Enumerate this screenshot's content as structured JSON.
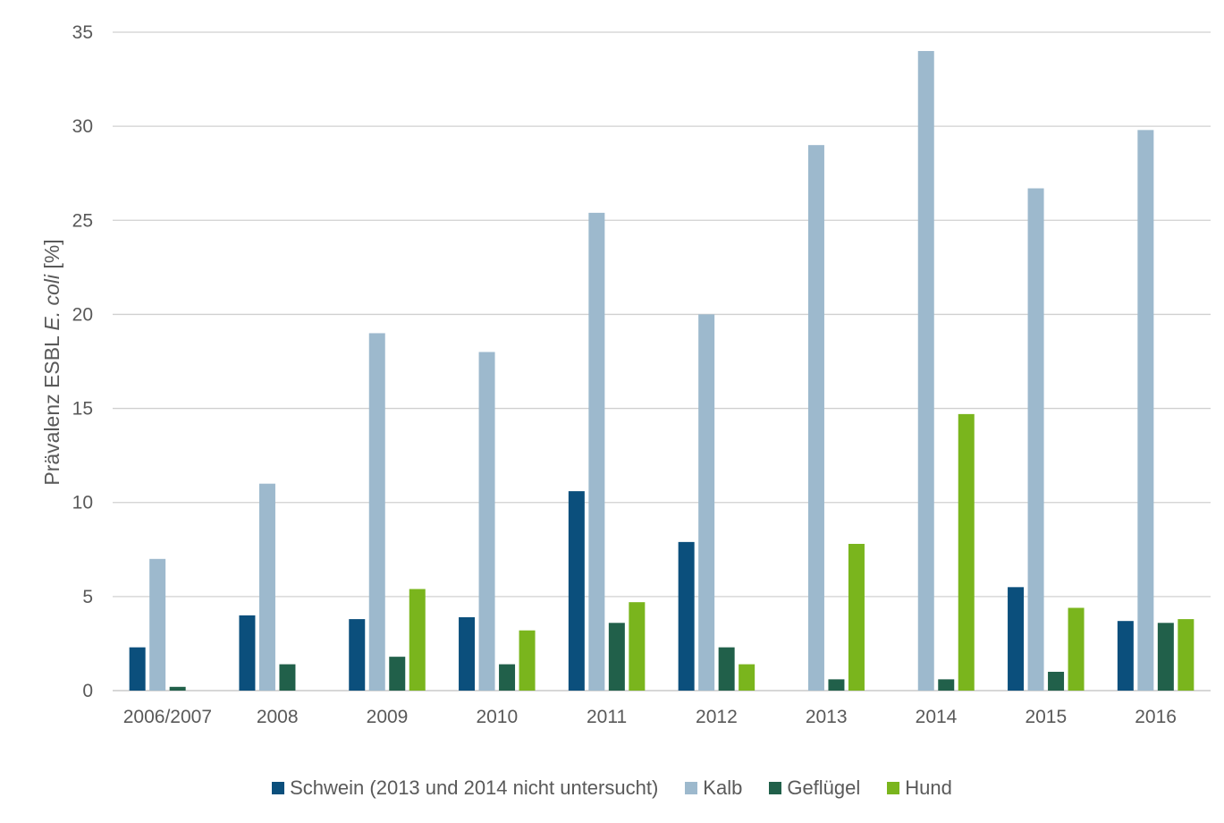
{
  "chart_data": {
    "type": "bar",
    "categories": [
      "2006/2007",
      "2008",
      "2009",
      "2010",
      "2011",
      "2012",
      "2013",
      "2014",
      "2015",
      "2016"
    ],
    "series": [
      {
        "name": "Schwein (2013 und 2014 nicht untersucht)",
        "color": "#0b4f7c",
        "values": [
          2.3,
          4.0,
          3.8,
          3.9,
          10.6,
          7.9,
          null,
          null,
          5.5,
          3.7
        ]
      },
      {
        "name": "Kalb",
        "color": "#9db9cd",
        "values": [
          7.0,
          11.0,
          19.0,
          18.0,
          25.4,
          20.0,
          29.0,
          34.0,
          26.7,
          29.8
        ]
      },
      {
        "name": "Geflügel",
        "color": "#21604a",
        "values": [
          0.2,
          1.4,
          1.8,
          1.4,
          3.6,
          2.3,
          0.6,
          0.6,
          1.0,
          3.6
        ]
      },
      {
        "name": "Hund",
        "color": "#7ab51d",
        "values": [
          null,
          null,
          5.4,
          3.2,
          4.7,
          1.4,
          7.8,
          14.7,
          4.4,
          3.8
        ]
      }
    ],
    "ylabel_prefix": "Prävalenz ESBL ",
    "ylabel_italic": "E. coli",
    "ylabel_suffix": " [%]",
    "ylim": [
      0,
      35
    ],
    "yticks": [
      "0",
      "5",
      "10",
      "15",
      "20",
      "25",
      "30",
      "35"
    ],
    "grid": true,
    "legend_position": "bottom"
  }
}
